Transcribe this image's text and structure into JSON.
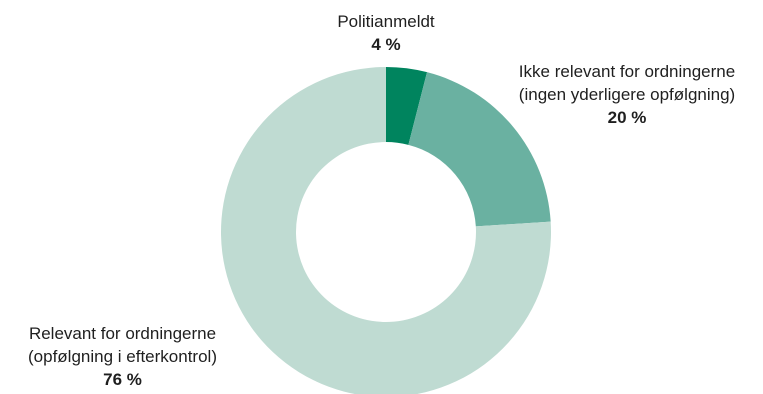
{
  "chart_data": {
    "type": "pie",
    "variant": "donut",
    "title": "",
    "slices": [
      {
        "label_lines": [
          "Politianmeldt"
        ],
        "value": 4,
        "value_label": "4 %",
        "color": "#00845e"
      },
      {
        "label_lines": [
          "Ikke relevant for ordningerne",
          "(ingen yderligere opfølgning)"
        ],
        "value": 20,
        "value_label": "20 %",
        "color": "#6ab1a1"
      },
      {
        "label_lines": [
          "Relevant for ordningerne",
          "(opfølgning i efterkontrol)"
        ],
        "value": 76,
        "value_label": "76 %",
        "color": "#bfdbd2"
      }
    ],
    "legend": "none"
  }
}
